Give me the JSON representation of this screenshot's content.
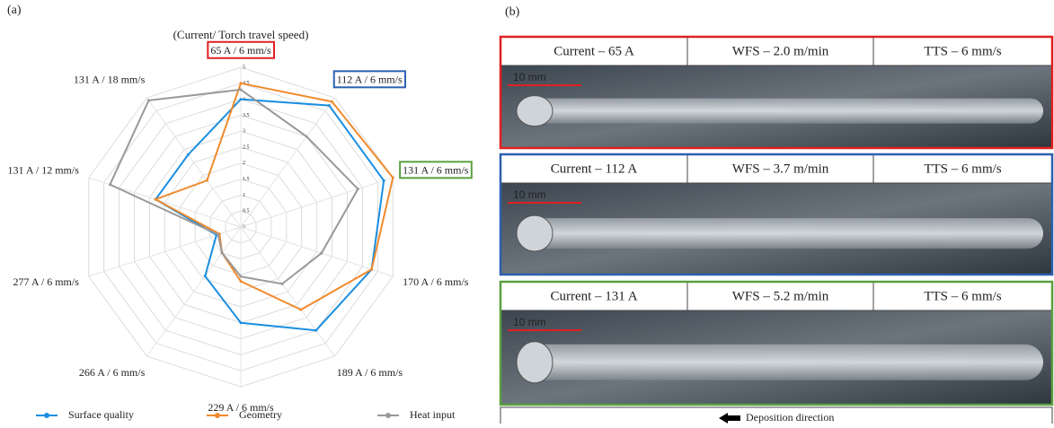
{
  "chart_data": {
    "type": "radar",
    "panel_label": "(a)",
    "subtitle": "(Current/ Torch travel speed)",
    "categories": [
      "65 A / 6 mm/s",
      "112 A / 6 mm/s",
      "131 A / 6 mm/s",
      "170 A / 6 mm/s",
      "189 A / 6 mm/s",
      "229 A / 6 mm/s",
      "266 A / 6 mm/s",
      "277 A / 6 mm/s",
      "131 A / 12 mm/s",
      "131 A / 18 mm/s"
    ],
    "category_box_colors": [
      "#e02020",
      "#2e5fb0",
      "#5aa040",
      null,
      null,
      null,
      null,
      null,
      null,
      null
    ],
    "rlim": [
      0,
      5
    ],
    "rticks": [
      0,
      0.5,
      1,
      1.5,
      2,
      2.5,
      3,
      3.5,
      4,
      4.5,
      5
    ],
    "grid": true,
    "legend": "bottom",
    "series": [
      {
        "name": "Surface quality",
        "color": "#1a8ee0",
        "values": [
          4,
          4.7,
          4.7,
          4.3,
          4,
          3,
          1.9,
          0.8,
          2.8,
          2.8
        ]
      },
      {
        "name": "Geometry",
        "color": "#f08a2c",
        "values": [
          4.5,
          4.85,
          5,
          4.3,
          3.2,
          1.7,
          1,
          0.7,
          2.8,
          1.8
        ]
      },
      {
        "name": "Heat input",
        "color": "#999999",
        "values": [
          4.3,
          3.5,
          3.85,
          2.65,
          2.2,
          1.55,
          1,
          0.75,
          4.3,
          4.9
        ]
      }
    ]
  },
  "panel_b": {
    "label": "(b)",
    "scale_bar": "10 mm",
    "direction": "Deposition direction",
    "rows": [
      {
        "color": "#e02020",
        "cells": [
          "Current – 65 A",
          "WFS – 2.0 m/min",
          "TTS – 6 mm/s"
        ]
      },
      {
        "color": "#2e5fb0",
        "cells": [
          "Current – 112 A",
          "WFS – 3.7 m/min",
          "TTS – 6 mm/s"
        ]
      },
      {
        "color": "#5aa040",
        "cells": [
          "Current – 131 A",
          "WFS – 5.2 m/min",
          "TTS – 6 mm/s"
        ]
      }
    ]
  }
}
